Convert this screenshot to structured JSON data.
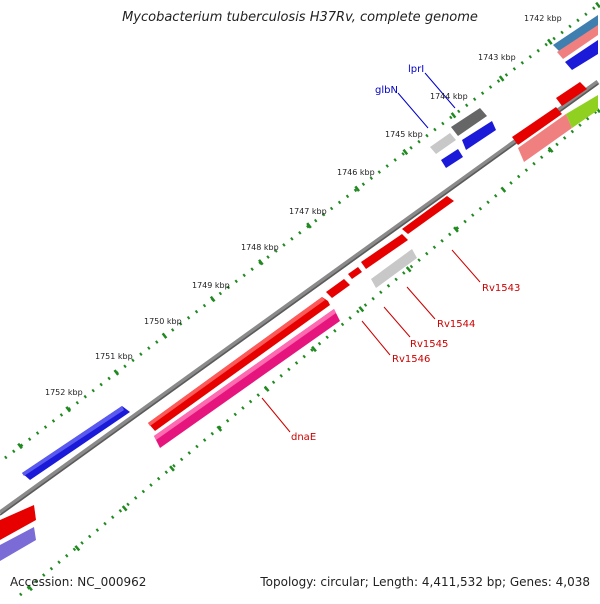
{
  "title": "Mycobacterium tuberculosis H37Rv, complete genome",
  "accession": "Accession: NC_000962",
  "summary": "Topology: circular; Length: 4,411,532 bp; Genes: 4,038",
  "colors": {
    "backbone": "#7a7a7a",
    "tick": "#1f8a1f",
    "label_blue": "#0000cc",
    "label_red": "#cc0000"
  },
  "kbp_labels": [
    "1742 kbp",
    "1743 kbp",
    "1744 kbp",
    "1745 kbp",
    "1746 kbp",
    "1747 kbp",
    "1748 kbp",
    "1749 kbp",
    "1750 kbp",
    "1751 kbp",
    "1752 kbp"
  ],
  "gene_labels": [
    {
      "name": "lprI",
      "color": "blue"
    },
    {
      "name": "glbN",
      "color": "blue"
    },
    {
      "name": "Rv1543",
      "color": "red"
    },
    {
      "name": "Rv1544",
      "color": "red"
    },
    {
      "name": "Rv1545",
      "color": "red"
    },
    {
      "name": "Rv1546",
      "color": "red"
    },
    {
      "name": "dnaE",
      "color": "red"
    }
  ]
}
